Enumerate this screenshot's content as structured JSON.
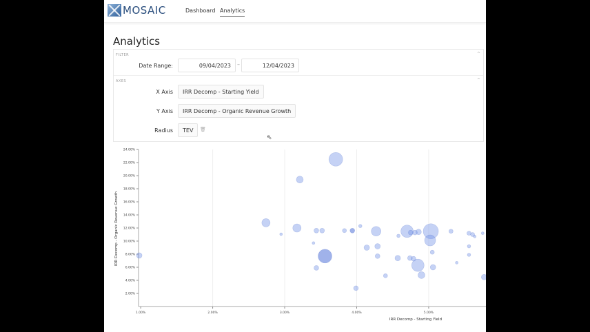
{
  "nav": {
    "brand": "MOSAIC",
    "links": [
      "Dashboard",
      "Analytics"
    ],
    "active": "Analytics"
  },
  "page_title": "Analytics",
  "filter": {
    "section": "FILTER",
    "date_range_label": "Date Range:",
    "start_date": "09/04/2023",
    "separator": "–",
    "end_date": "12/04/2023"
  },
  "axes": {
    "section": "AXES",
    "x_label": "X Axis",
    "x_value": "IRR Decomp - Starting Yield",
    "y_label": "Y Axis",
    "y_value": "IRR Decomp - Organic Revenue Growth",
    "radius_label": "Radius",
    "radius_value": "TEV"
  },
  "chart_data": {
    "type": "scatter",
    "xlabel": "IRR Decomp - Starting Yield",
    "ylabel": "IRR Decomp - Organic Revenue Growth",
    "xlim": [
      0.97,
      5.8
    ],
    "ylim": [
      0,
      24
    ],
    "x_ticks": [
      "1.00%",
      "2.00%",
      "3.00%",
      "4.00%",
      "5.00%"
    ],
    "y_ticks": [
      "2.00%",
      "4.00%",
      "6.00%",
      "8.00%",
      "10.00%",
      "12.00%",
      "14.00%",
      "16.00%",
      "18.00%",
      "20.00%",
      "22.00%",
      "24.00%"
    ],
    "grid": "vertical",
    "color": "#6f8ee6",
    "highlight_color": "#5272d8",
    "points": [
      {
        "x": 0.98,
        "y": 7.8,
        "tev": 160
      },
      {
        "x": 3.71,
        "y": 22.5,
        "tev": 1000
      },
      {
        "x": 3.21,
        "y": 19.4,
        "tev": 250
      },
      {
        "x": 2.74,
        "y": 12.8,
        "tev": 360
      },
      {
        "x": 2.95,
        "y": 11.05,
        "tev": 40
      },
      {
        "x": 3.17,
        "y": 12.0,
        "tev": 360
      },
      {
        "x": 3.44,
        "y": 11.6,
        "tev": 120
      },
      {
        "x": 3.52,
        "y": 11.6,
        "tev": 120
      },
      {
        "x": 3.4,
        "y": 9.7,
        "tev": 40
      },
      {
        "x": 3.56,
        "y": 7.7,
        "tev": 1000,
        "highlight": true
      },
      {
        "x": 3.44,
        "y": 5.9,
        "tev": 120
      },
      {
        "x": 3.83,
        "y": 11.6,
        "tev": 90
      },
      {
        "x": 3.94,
        "y": 11.6,
        "tev": 120,
        "highlight": true
      },
      {
        "x": 4.05,
        "y": 12.3,
        "tev": 60
      },
      {
        "x": 4.27,
        "y": 11.5,
        "tev": 490
      },
      {
        "x": 4.14,
        "y": 9.0,
        "tev": 160
      },
      {
        "x": 4.29,
        "y": 9.2,
        "tev": 160
      },
      {
        "x": 4.29,
        "y": 7.7,
        "tev": 120
      },
      {
        "x": 3.99,
        "y": 2.8,
        "tev": 120
      },
      {
        "x": 4.4,
        "y": 4.7,
        "tev": 90
      },
      {
        "x": 4.58,
        "y": 10.8,
        "tev": 60
      },
      {
        "x": 4.7,
        "y": 11.5,
        "tev": 810
      },
      {
        "x": 4.75,
        "y": 11.3,
        "tev": 120
      },
      {
        "x": 4.81,
        "y": 11.3,
        "tev": 120
      },
      {
        "x": 4.86,
        "y": 11.4,
        "tev": 160
      },
      {
        "x": 5.03,
        "y": 11.5,
        "tev": 1210
      },
      {
        "x": 5.02,
        "y": 10.1,
        "tev": 640
      },
      {
        "x": 4.57,
        "y": 7.4,
        "tev": 160
      },
      {
        "x": 4.74,
        "y": 7.4,
        "tev": 120
      },
      {
        "x": 4.79,
        "y": 7.3,
        "tev": 120
      },
      {
        "x": 4.85,
        "y": 6.3,
        "tev": 810
      },
      {
        "x": 4.9,
        "y": 4.8,
        "tev": 250
      },
      {
        "x": 5.05,
        "y": 8.3,
        "tev": 90
      },
      {
        "x": 5.06,
        "y": 6.0,
        "tev": 160
      },
      {
        "x": 5.31,
        "y": 11.5,
        "tev": 90
      },
      {
        "x": 5.39,
        "y": 6.7,
        "tev": 40
      },
      {
        "x": 5.56,
        "y": 11.2,
        "tev": 90
      },
      {
        "x": 5.61,
        "y": 11.0,
        "tev": 90
      },
      {
        "x": 5.64,
        "y": 10.7,
        "tev": 40
      },
      {
        "x": 5.56,
        "y": 9.2,
        "tev": 60
      },
      {
        "x": 5.56,
        "y": 7.9,
        "tev": 60
      },
      {
        "x": 5.75,
        "y": 11.2,
        "tev": 40
      },
      {
        "x": 5.77,
        "y": 4.5,
        "tev": 160
      }
    ]
  }
}
